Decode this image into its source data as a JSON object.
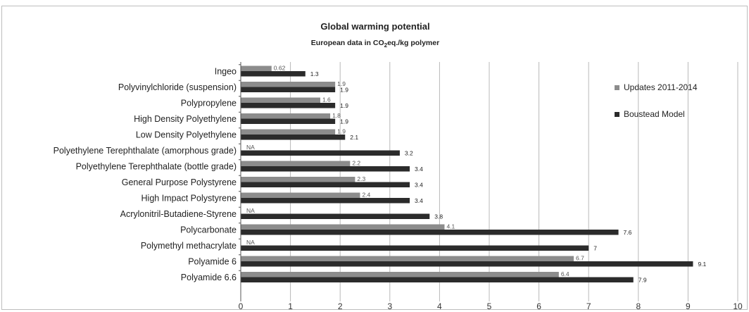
{
  "chart_data": {
    "type": "bar",
    "orientation": "horizontal",
    "title": "Global warming potential",
    "subtitle_parts": [
      "European data in CO",
      "2",
      "eq./kg polymer"
    ],
    "categories": [
      "Ingeo",
      "Polyvinylchloride (suspension)",
      "Polypropylene",
      "High Density Polyethylene",
      "Low Density Polyethylene",
      "Polyethylene Terephthalate (amorphous grade)",
      "Polyethylene Terephthalate (bottle grade)",
      "General Purpose Polystyrene",
      "High Impact Polystyrene",
      "Acrylonitril-Butadiene-Styrene",
      "Polycarbonate",
      "Polymethyl methacrylate",
      "Polyamide 6",
      "Polyamide 6.6"
    ],
    "series": [
      {
        "name": "Updates 2011-2014",
        "color": "#8c8c8c",
        "values": [
          0.62,
          1.9,
          1.6,
          1.8,
          1.9,
          null,
          2.2,
          2.3,
          2.4,
          null,
          4.1,
          null,
          6.7,
          6.4
        ],
        "labels": [
          "0.62",
          "1.9",
          "1.6",
          "1.8",
          "1.9",
          "NA",
          "2.2",
          "2.3",
          "2.4",
          "NA",
          "4.1",
          "NA",
          "6.7",
          "6.4"
        ]
      },
      {
        "name": "Boustead Model",
        "color": "#2b2b2b",
        "values": [
          1.3,
          1.9,
          1.9,
          1.9,
          2.1,
          3.2,
          3.4,
          3.4,
          3.4,
          3.8,
          7.6,
          7,
          9.1,
          7.9
        ],
        "labels": [
          "1.3",
          "1.9",
          "1.9",
          "1.9",
          "2.1",
          "3.2",
          "3.4",
          "3.4",
          "3.4",
          "3.8",
          "7.6",
          "7",
          "9.1",
          "7.9"
        ]
      }
    ],
    "xlim": [
      0,
      10
    ],
    "xticks": [
      "0",
      "1",
      "2",
      "3",
      "4",
      "5",
      "6",
      "7",
      "8",
      "9",
      "10"
    ],
    "grid": "vertical",
    "legend_position": "top-right"
  }
}
